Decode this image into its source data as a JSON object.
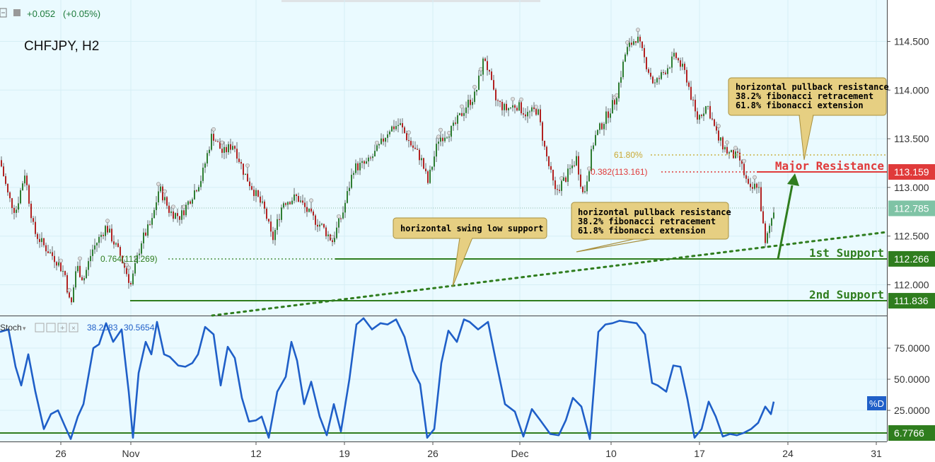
{
  "header": {
    "change": "+0.052",
    "change_pct": "(+0.05%)"
  },
  "chart_title": "CHFJPY, H2",
  "price_axis": {
    "ticks": [
      "114.500",
      "114.000",
      "113.500",
      "113.000",
      "112.500",
      "112.000"
    ],
    "tick_values": [
      114.5,
      114.0,
      113.5,
      113.0,
      112.5,
      112.0
    ],
    "badges": [
      {
        "label": "113.159",
        "value": 113.159,
        "color": "#e03a3a"
      },
      {
        "label": "112.785",
        "value": 112.785,
        "color": "#7fc3a5"
      },
      {
        "label": "112.266",
        "value": 112.266,
        "color": "#2f7d1e"
      },
      {
        "label": "111.836",
        "value": 111.836,
        "color": "#2f7d1e"
      }
    ]
  },
  "time_axis": {
    "labels": [
      "26",
      "Nov",
      "12",
      "19",
      "26",
      "Dec",
      "10",
      "17",
      "24",
      "31"
    ]
  },
  "levels": {
    "major_resistance": {
      "label": "Major Resistance",
      "value": 113.159,
      "color": "#e03a3a"
    },
    "first_support": {
      "label": "1st Support",
      "value": 112.266,
      "color": "#2f7d1e"
    },
    "second_support": {
      "label": "2nd Support",
      "value": 111.836,
      "color": "#2f7d1e"
    }
  },
  "fib_labels": {
    "fib_618": "61.80%",
    "fib_382": "0.382(113.161)",
    "fib_764": "0.764(112.269)"
  },
  "annotations": {
    "box_top": [
      "horizontal pullback resistance",
      "38.2% fibonacci retracement",
      "61.8% fibonacci extension"
    ],
    "box_mid": [
      "horizontal pullback resistance",
      "38.2% fibonacci retracement",
      "61.8% fibonacci extension"
    ],
    "box_swing": "horizontal swing low support"
  },
  "stoch": {
    "label": "Stoch",
    "k_value": "38.2083",
    "d_value": "30.5654",
    "ticks": [
      "75.0000",
      "50.0000",
      "25.0000"
    ],
    "tick_values": [
      75,
      50,
      25
    ],
    "level_badge": "6.7766",
    "pctd_label": "%D",
    "line_color": "#1f5fc8"
  },
  "colors": {
    "background": "#eafaff",
    "bull_candle": "#2e7d32",
    "bear_candle": "#b22222",
    "support_green": "#2f7d1e",
    "resistance_red": "#e03a3a",
    "annotation_fill": "#e6cf82",
    "annotation_stroke": "#a8903e"
  },
  "chart_data": {
    "type": "candlestick",
    "title": "CHFJPY, H2",
    "ylim": [
      111.65,
      114.85
    ],
    "x_labels": [
      "26",
      "Nov",
      "12",
      "19",
      "26",
      "Dec",
      "10",
      "17",
      "24",
      "31"
    ],
    "series": [
      {
        "name": "CHFJPY",
        "close_path": [
          [
            0,
            113.28
          ],
          [
            12,
            112.9
          ],
          [
            22,
            112.75
          ],
          [
            35,
            113.15
          ],
          [
            48,
            112.55
          ],
          [
            62,
            112.4
          ],
          [
            80,
            112.25
          ],
          [
            92,
            112.1
          ],
          [
            100,
            111.75
          ],
          [
            108,
            112.2
          ],
          [
            118,
            112.05
          ],
          [
            130,
            112.35
          ],
          [
            150,
            112.6
          ],
          [
            170,
            112.3
          ],
          [
            185,
            112.0
          ],
          [
            200,
            112.45
          ],
          [
            215,
            112.65
          ],
          [
            225,
            113.0
          ],
          [
            240,
            112.75
          ],
          [
            255,
            112.7
          ],
          [
            270,
            112.9
          ],
          [
            285,
            113.1
          ],
          [
            300,
            113.55
          ],
          [
            315,
            113.35
          ],
          [
            330,
            113.45
          ],
          [
            345,
            113.15
          ],
          [
            360,
            112.95
          ],
          [
            375,
            112.75
          ],
          [
            385,
            112.45
          ],
          [
            400,
            112.85
          ],
          [
            420,
            112.9
          ],
          [
            440,
            112.7
          ],
          [
            455,
            112.6
          ],
          [
            470,
            112.45
          ],
          [
            485,
            112.75
          ],
          [
            500,
            113.2
          ],
          [
            520,
            113.25
          ],
          [
            535,
            113.4
          ],
          [
            550,
            113.6
          ],
          [
            565,
            113.65
          ],
          [
            580,
            113.45
          ],
          [
            595,
            113.3
          ],
          [
            605,
            113.05
          ],
          [
            620,
            113.5
          ],
          [
            640,
            113.6
          ],
          [
            660,
            113.85
          ],
          [
            672,
            113.95
          ],
          [
            685,
            114.35
          ],
          [
            700,
            113.9
          ],
          [
            715,
            113.8
          ],
          [
            730,
            113.85
          ],
          [
            745,
            113.75
          ],
          [
            760,
            113.8
          ],
          [
            770,
            113.4
          ],
          [
            785,
            112.95
          ],
          [
            800,
            113.1
          ],
          [
            815,
            113.3
          ],
          [
            825,
            112.9
          ],
          [
            840,
            113.5
          ],
          [
            855,
            113.7
          ],
          [
            870,
            113.9
          ],
          [
            885,
            114.4
          ],
          [
            900,
            114.55
          ],
          [
            912,
            114.3
          ],
          [
            925,
            114.05
          ],
          [
            940,
            114.2
          ],
          [
            955,
            114.35
          ],
          [
            970,
            114.15
          ],
          [
            985,
            113.7
          ],
          [
            1000,
            113.85
          ],
          [
            1015,
            113.5
          ],
          [
            1030,
            113.35
          ],
          [
            1045,
            113.3
          ],
          [
            1060,
            112.95
          ],
          [
            1072,
            113.05
          ],
          [
            1082,
            112.4
          ],
          [
            1088,
            112.6
          ],
          [
            1095,
            112.8
          ]
        ]
      }
    ]
  }
}
